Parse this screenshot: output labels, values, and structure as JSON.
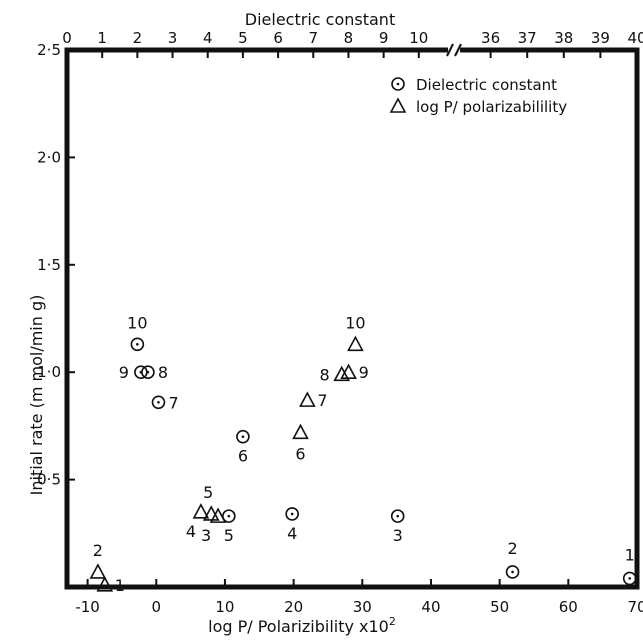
{
  "chart_data": {
    "type": "scatter",
    "title": "",
    "top_axis": {
      "label": "Dielectric constant",
      "segments": [
        {
          "ticks": [
            0,
            1,
            2,
            3,
            4,
            5,
            6,
            7,
            8,
            9,
            10
          ],
          "tick_labels": [
            "0",
            "1",
            "2",
            "3",
            "4",
            "5",
            "6",
            "7",
            "8",
            "9",
            "10"
          ],
          "range": [
            0,
            11
          ]
        },
        {
          "ticks": [
            36,
            37,
            38,
            39,
            40
          ],
          "tick_labels": [
            "36",
            "37",
            "38",
            "39",
            "40"
          ],
          "range": [
            35,
            40
          ]
        }
      ],
      "break_symbol": "//"
    },
    "bottom_axis": {
      "label": "log P/ Polarizibility  x10",
      "label_superscript": "2",
      "ticks": [
        -10,
        0,
        10,
        20,
        30,
        40,
        50,
        60,
        70
      ],
      "tick_labels": [
        "-10",
        "0",
        "10",
        "20",
        "30",
        "40",
        "50",
        "60",
        "70"
      ],
      "range": [
        -13,
        70
      ]
    },
    "y_axis": {
      "label": "Initial rate  (m mol/min g)",
      "ticks": [
        0.5,
        1.0,
        1.5,
        2.0,
        2.5
      ],
      "tick_labels": [
        "0·5",
        "1·0",
        "1·5",
        "2·0",
        "2·5"
      ],
      "range": [
        0,
        2.5
      ]
    },
    "legend": {
      "position": "top-right",
      "entries": [
        {
          "name": "Dielectric constant",
          "marker": "circle"
        },
        {
          "name": "log P/ polarizabilility",
          "marker": "triangle"
        }
      ]
    },
    "series": [
      {
        "name": "Dielectric constant",
        "marker": "circle",
        "axis": "top",
        "points": [
          {
            "label": "1",
            "x": 39.8,
            "y": 0.04
          },
          {
            "label": "2",
            "x": 36.6,
            "y": 0.07
          },
          {
            "label": "3",
            "x": 9.4,
            "y": 0.33
          },
          {
            "label": "4",
            "x": 6.4,
            "y": 0.34
          },
          {
            "label": "5",
            "x": 4.6,
            "y": 0.33
          },
          {
            "label": "6",
            "x": 5.0,
            "y": 0.7
          },
          {
            "label": "7",
            "x": 2.6,
            "y": 0.86
          },
          {
            "label": "8",
            "x": 2.3,
            "y": 1.0
          },
          {
            "label": "9",
            "x": 2.1,
            "y": 1.0
          },
          {
            "label": "10",
            "x": 2.0,
            "y": 1.13
          }
        ]
      },
      {
        "name": "log P/ polarizabilility",
        "marker": "triangle",
        "axis": "bottom",
        "points": [
          {
            "label": "1",
            "x": -7.5,
            "y": 0.01
          },
          {
            "label": "2",
            "x": -8.5,
            "y": 0.07
          },
          {
            "label": "3",
            "x": 9,
            "y": 0.33
          },
          {
            "label": "4",
            "x": 6.5,
            "y": 0.35
          },
          {
            "label": "5",
            "x": 8,
            "y": 0.34
          },
          {
            "label": "6",
            "x": 21,
            "y": 0.72
          },
          {
            "label": "7",
            "x": 22,
            "y": 0.87
          },
          {
            "label": "8",
            "x": 27,
            "y": 0.99
          },
          {
            "label": "9",
            "x": 28,
            "y": 1.0
          },
          {
            "label": "10",
            "x": 29,
            "y": 1.13
          }
        ]
      }
    ]
  }
}
